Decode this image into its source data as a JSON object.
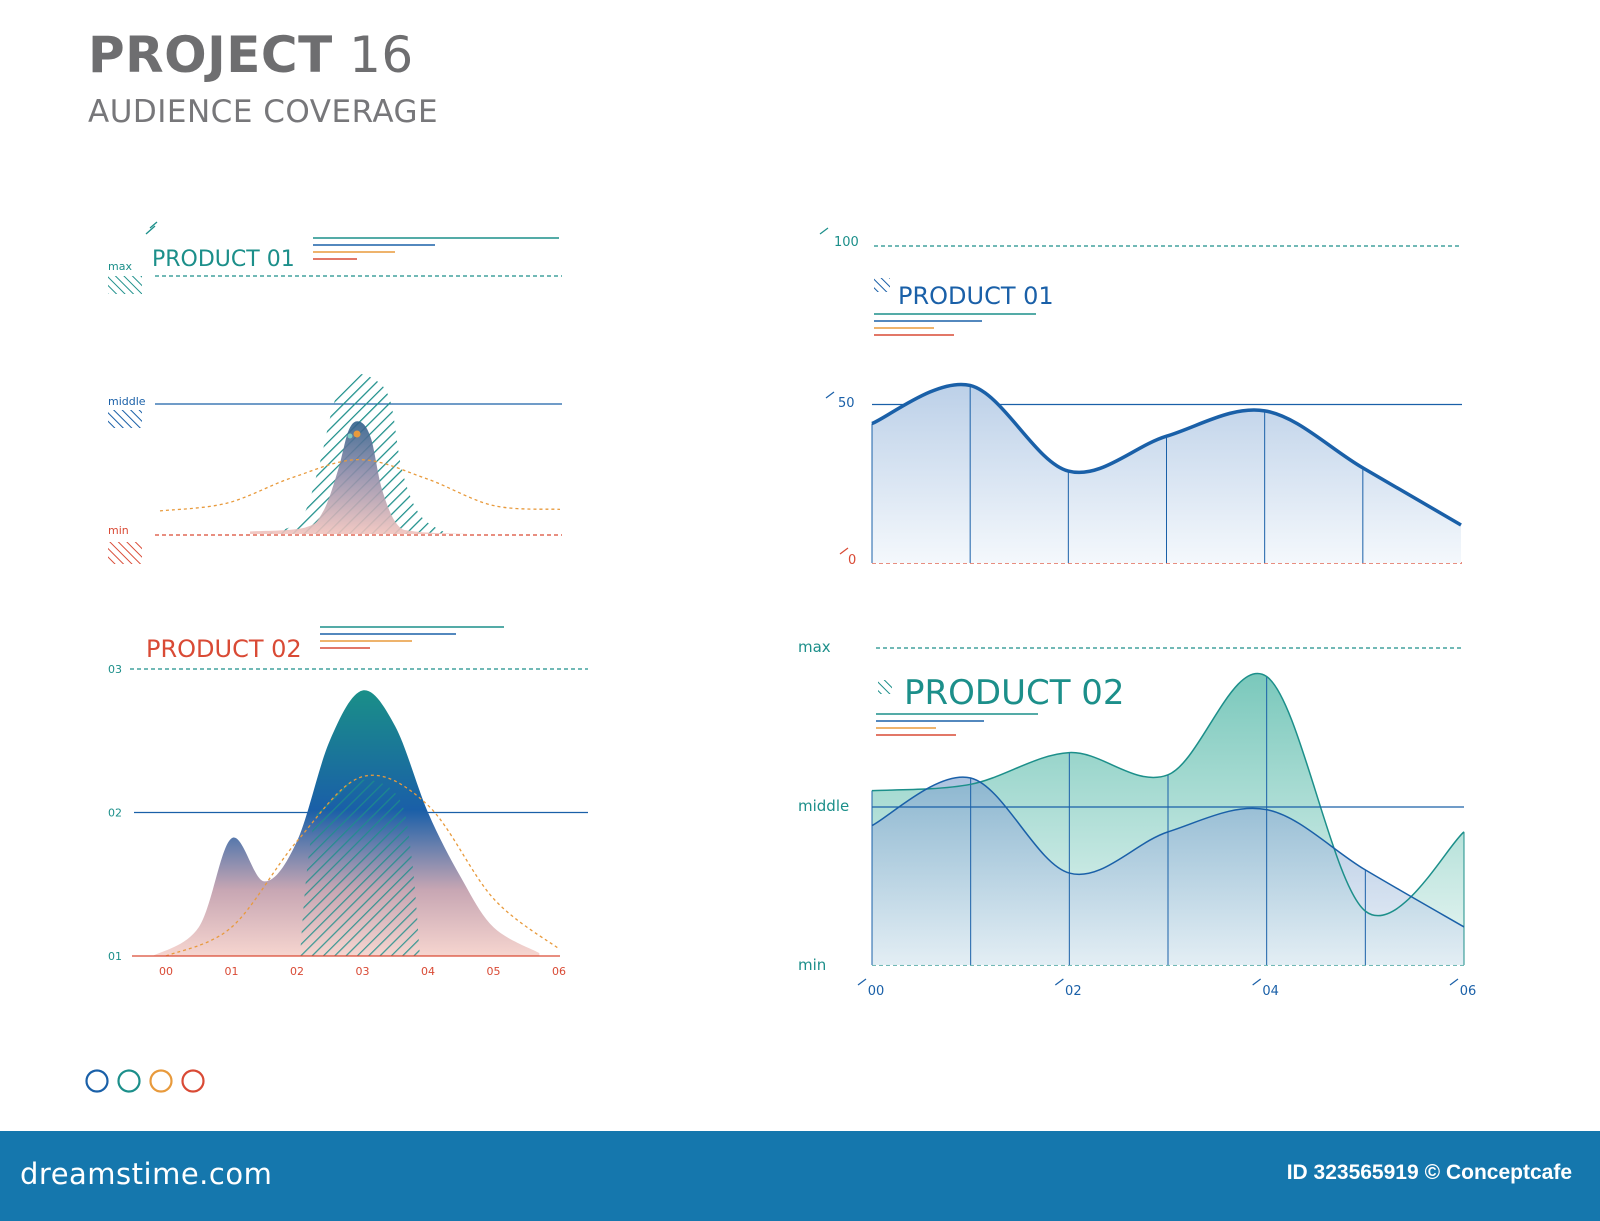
{
  "header": {
    "title_bold": "PROJECT",
    "title_num": "16",
    "subtitle": "AUDIENCE COVERAGE"
  },
  "colors": {
    "teal": "#1c8f8a",
    "blue": "#1a60a8",
    "red": "#d94a35",
    "orange": "#e89a3c",
    "gray": "#6e6e70",
    "footer": "#1577ad"
  },
  "footer": {
    "logo": "dreamstime.com",
    "id": "ID 323565919",
    "credit": "© Conceptcafe"
  },
  "legend_dots": [
    "#1a60a8",
    "#1c8f8a",
    "#e89a3c",
    "#d94a35"
  ],
  "chart_data": [
    {
      "type": "area",
      "title": "PRODUCT 01",
      "levels": [
        "max",
        "middle",
        "min"
      ],
      "x_range": [
        0,
        6
      ],
      "series": [
        {
          "values": [
            [
              0,
              0.02
            ],
            [
              1.5,
              0.05
            ],
            [
              2,
              0.18
            ],
            [
              2.4,
              0.5
            ],
            [
              2.7,
              0.82
            ],
            [
              3,
              0.88
            ],
            [
              3.3,
              0.75
            ],
            [
              3.6,
              0.35
            ],
            [
              4,
              0.08
            ],
            [
              4.5,
              0.02
            ],
            [
              6,
              0.0
            ]
          ]
        },
        {
          "values": [
            [
              0,
              0.08
            ],
            [
              1,
              0.18
            ],
            [
              2,
              0.52
            ],
            [
              3,
              0.75
            ],
            [
              4,
              0.5
            ],
            [
              5,
              0.15
            ],
            [
              6,
              0.1
            ]
          ]
        }
      ]
    },
    {
      "type": "area",
      "title": "PRODUCT 02",
      "y_ticks": [
        "01",
        "02",
        "03"
      ],
      "x_ticks": [
        "00",
        "01",
        "02",
        "03",
        "04",
        "05",
        "06"
      ],
      "ylim": [
        1,
        3
      ],
      "series": [
        {
          "values": [
            [
              -0.2,
              1.0
            ],
            [
              0.5,
              1.2
            ],
            [
              1,
              1.82
            ],
            [
              1.5,
              1.52
            ],
            [
              2,
              1.8
            ],
            [
              2.5,
              2.5
            ],
            [
              3,
              2.85
            ],
            [
              3.5,
              2.6
            ],
            [
              4,
              2.0
            ],
            [
              4.5,
              1.55
            ],
            [
              5,
              1.2
            ],
            [
              5.7,
              1.02
            ]
          ]
        },
        {
          "values": [
            [
              0,
              1.0
            ],
            [
              1,
              1.2
            ],
            [
              2,
              1.8
            ],
            [
              3,
              2.25
            ],
            [
              4,
              2.05
            ],
            [
              5,
              1.4
            ],
            [
              6,
              1.05
            ]
          ]
        }
      ]
    },
    {
      "type": "line",
      "title": "PRODUCT 01",
      "y_ticks": [
        "0",
        "50",
        "100"
      ],
      "ylim": [
        0,
        100
      ],
      "x": [
        0,
        1,
        2,
        3,
        4,
        5,
        6
      ],
      "series": [
        {
          "values": [
            44,
            56,
            29,
            40,
            48,
            30,
            12
          ]
        }
      ]
    },
    {
      "type": "area",
      "title": "PRODUCT 02",
      "y_labels": [
        "max",
        "middle",
        "min"
      ],
      "x_ticks": [
        "00",
        "02",
        "04",
        "06"
      ],
      "x": [
        0,
        1,
        2,
        3,
        4,
        5,
        6
      ],
      "series": [
        {
          "values": [
            0.55,
            0.57,
            0.67,
            0.6,
            0.91,
            0.17,
            0.42
          ]
        },
        {
          "values": [
            0.44,
            0.59,
            0.29,
            0.42,
            0.49,
            0.3,
            0.12
          ]
        }
      ]
    }
  ]
}
